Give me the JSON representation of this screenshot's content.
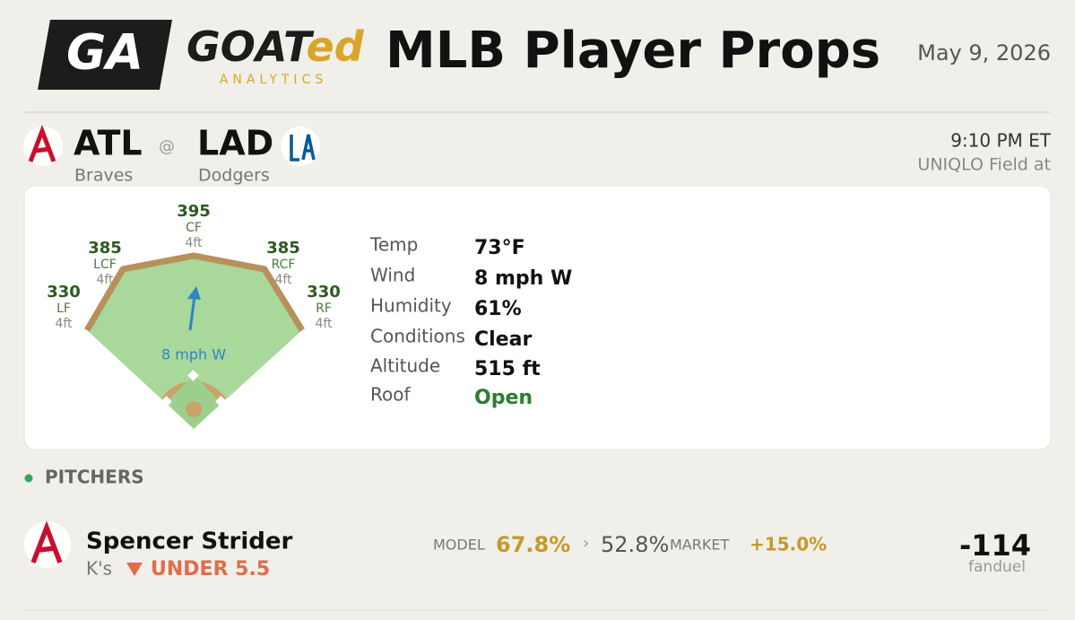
{
  "header": {
    "logo_mark": "GA",
    "brand_main": "GOAT",
    "brand_accent": "ed",
    "brand_sub": "ANALYTICS",
    "title": "MLB Player Props",
    "date": "May 9, 2026"
  },
  "game": {
    "away": {
      "abbr": "ATL",
      "name": "Braves"
    },
    "separator": "@",
    "home": {
      "abbr": "LAD",
      "name": "Dodgers"
    },
    "time": "9:10 PM ET",
    "venue": "UNIQLO Field at"
  },
  "field": {
    "fences": [
      {
        "position": "LF",
        "distance": "330",
        "height": "4ft"
      },
      {
        "position": "LCF",
        "distance": "385",
        "height": "4ft"
      },
      {
        "position": "CF",
        "distance": "395",
        "height": "4ft"
      },
      {
        "position": "RCF",
        "distance": "385",
        "height": "4ft"
      },
      {
        "position": "RF",
        "distance": "330",
        "height": "4ft"
      }
    ]
  },
  "weather": [
    {
      "label": "Temp",
      "value": "73°F"
    },
    {
      "label": "Wind",
      "value": "8 mph W"
    },
    {
      "label": "Humidity",
      "value": "61%"
    },
    {
      "label": "Conditions",
      "value": "Clear"
    },
    {
      "label": "Altitude",
      "value": "515 ft"
    },
    {
      "label": "Roof",
      "value": "Open"
    }
  ],
  "section": "PITCHERS",
  "props": [
    {
      "player": "Spencer Strider",
      "stat": "K's",
      "pick": "UNDER 5.5",
      "model_label": "MODEL",
      "model": "67.8%",
      "arrow": "›",
      "market": "52.8%",
      "market_label": "MARKET",
      "edge": "+15.0%",
      "odds": "-114",
      "book": "fanduel"
    }
  ]
}
